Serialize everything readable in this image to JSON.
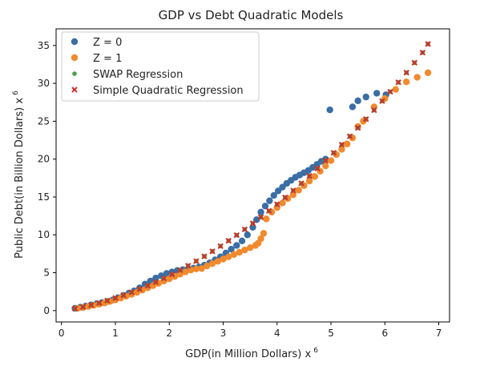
{
  "chart_data": {
    "type": "scatter",
    "title": "GDP vs Debt Quadratic Models",
    "xlabel": "GDP(in Million Dollars) x",
    "xlabel_exp": "6",
    "ylabel": "Public Debt(in Billion Dollars) x",
    "ylabel_exp": "6",
    "xlim": [
      -0.1,
      7.2
    ],
    "ylim": [
      -1.5,
      37.2
    ],
    "xticks": [
      0,
      1,
      2,
      3,
      4,
      5,
      6,
      7
    ],
    "yticks": [
      0,
      5,
      10,
      15,
      20,
      25,
      30,
      35
    ],
    "grid": false,
    "legend_position": "top-left",
    "series": [
      {
        "name": "Z = 0",
        "marker": "circle",
        "color": "#3a6ea5",
        "points": [
          [
            0.25,
            0.3
          ],
          [
            0.35,
            0.45
          ],
          [
            0.45,
            0.6
          ],
          [
            0.55,
            0.75
          ],
          [
            0.65,
            0.9
          ],
          [
            0.75,
            1.05
          ],
          [
            0.85,
            1.2
          ],
          [
            0.95,
            1.4
          ],
          [
            1.05,
            1.7
          ],
          [
            1.15,
            2.0
          ],
          [
            1.25,
            2.3
          ],
          [
            1.35,
            2.6
          ],
          [
            1.45,
            3.0
          ],
          [
            1.55,
            3.5
          ],
          [
            1.65,
            3.9
          ],
          [
            1.75,
            4.3
          ],
          [
            1.85,
            4.6
          ],
          [
            1.95,
            4.9
          ],
          [
            2.05,
            5.1
          ],
          [
            2.15,
            5.3
          ],
          [
            2.25,
            5.4
          ],
          [
            2.35,
            5.5
          ],
          [
            2.45,
            5.6
          ],
          [
            2.55,
            5.75
          ],
          [
            2.65,
            6.0
          ],
          [
            2.75,
            6.3
          ],
          [
            2.85,
            6.7
          ],
          [
            2.95,
            7.1
          ],
          [
            3.05,
            7.6
          ],
          [
            3.15,
            8.1
          ],
          [
            3.25,
            8.6
          ],
          [
            3.35,
            9.2
          ],
          [
            3.45,
            10.0
          ],
          [
            3.55,
            11.0
          ],
          [
            3.62,
            12.0
          ],
          [
            3.7,
            13.0
          ],
          [
            3.78,
            13.8
          ],
          [
            3.86,
            14.5
          ],
          [
            3.94,
            15.2
          ],
          [
            4.02,
            15.8
          ],
          [
            4.1,
            16.3
          ],
          [
            4.18,
            16.8
          ],
          [
            4.26,
            17.2
          ],
          [
            4.34,
            17.6
          ],
          [
            4.42,
            17.9
          ],
          [
            4.5,
            18.2
          ],
          [
            4.58,
            18.5
          ],
          [
            4.66,
            18.9
          ],
          [
            4.74,
            19.3
          ],
          [
            4.82,
            19.7
          ],
          [
            4.9,
            20.0
          ],
          [
            4.98,
            26.5
          ],
          [
            5.4,
            26.9
          ],
          [
            5.5,
            27.7
          ],
          [
            5.65,
            28.2
          ],
          [
            5.85,
            28.7
          ],
          [
            6.02,
            28.5
          ]
        ]
      },
      {
        "name": "Z = 1",
        "marker": "circle",
        "color": "#f08a2e",
        "points": [
          [
            0.3,
            0.3
          ],
          [
            0.4,
            0.4
          ],
          [
            0.5,
            0.55
          ],
          [
            0.6,
            0.7
          ],
          [
            0.7,
            0.85
          ],
          [
            0.8,
            1.0
          ],
          [
            0.9,
            1.2
          ],
          [
            1.0,
            1.4
          ],
          [
            1.1,
            1.65
          ],
          [
            1.2,
            1.9
          ],
          [
            1.3,
            2.15
          ],
          [
            1.4,
            2.4
          ],
          [
            1.5,
            2.7
          ],
          [
            1.6,
            3.0
          ],
          [
            1.7,
            3.3
          ],
          [
            1.8,
            3.6
          ],
          [
            1.9,
            3.9
          ],
          [
            2.0,
            4.2
          ],
          [
            2.1,
            4.5
          ],
          [
            2.2,
            4.8
          ],
          [
            2.3,
            5.1
          ],
          [
            2.4,
            5.35
          ],
          [
            2.5,
            5.5
          ],
          [
            2.6,
            5.55
          ],
          [
            2.7,
            5.9
          ],
          [
            2.8,
            6.2
          ],
          [
            2.9,
            6.5
          ],
          [
            3.0,
            6.8
          ],
          [
            3.1,
            7.1
          ],
          [
            3.2,
            7.4
          ],
          [
            3.3,
            7.7
          ],
          [
            3.4,
            8.0
          ],
          [
            3.5,
            8.3
          ],
          [
            3.6,
            8.6
          ],
          [
            3.65,
            8.9
          ],
          [
            3.7,
            9.5
          ],
          [
            3.75,
            10.2
          ],
          [
            3.8,
            12.1
          ],
          [
            3.9,
            13.0
          ],
          [
            4.0,
            13.6
          ],
          [
            4.1,
            14.2
          ],
          [
            4.2,
            14.8
          ],
          [
            4.3,
            15.3
          ],
          [
            4.4,
            15.9
          ],
          [
            4.5,
            16.5
          ],
          [
            4.6,
            17.1
          ],
          [
            4.7,
            17.7
          ],
          [
            4.8,
            18.4
          ],
          [
            4.9,
            19.1
          ],
          [
            5.0,
            19.8
          ],
          [
            5.1,
            20.6
          ],
          [
            5.2,
            21.3
          ],
          [
            5.3,
            22.0
          ],
          [
            5.4,
            22.8
          ],
          [
            5.5,
            24.3
          ],
          [
            5.6,
            25.0
          ],
          [
            5.8,
            26.9
          ],
          [
            6.0,
            28.0
          ],
          [
            6.2,
            29.2
          ],
          [
            6.4,
            30.2
          ],
          [
            6.6,
            30.8
          ],
          [
            6.8,
            31.4
          ]
        ]
      },
      {
        "name": "SWAP Regression",
        "marker": "dot",
        "color": "#4a9e4a",
        "points": [
          [
            0.25,
            0.26
          ],
          [
            0.4,
            0.48
          ],
          [
            0.55,
            0.73
          ],
          [
            0.7,
            1.01
          ],
          [
            0.85,
            1.32
          ],
          [
            1.0,
            1.66
          ],
          [
            1.15,
            2.03
          ],
          [
            1.3,
            2.42
          ],
          [
            1.45,
            2.84
          ],
          [
            1.6,
            3.29
          ],
          [
            1.75,
            3.76
          ],
          [
            1.9,
            4.26
          ],
          [
            2.05,
            4.79
          ],
          [
            2.2,
            5.34
          ],
          [
            2.35,
            5.92
          ],
          [
            2.5,
            6.53
          ],
          [
            2.65,
            7.16
          ],
          [
            2.8,
            7.82
          ],
          [
            2.95,
            8.51
          ],
          [
            3.1,
            9.22
          ],
          [
            3.25,
            9.96
          ],
          [
            3.4,
            10.72
          ],
          [
            3.55,
            11.51
          ],
          [
            3.7,
            12.33
          ],
          [
            3.85,
            13.17
          ],
          [
            4.0,
            14.04
          ],
          [
            4.15,
            14.93
          ],
          [
            4.3,
            15.85
          ],
          [
            4.45,
            16.8
          ],
          [
            4.6,
            17.77
          ],
          [
            4.75,
            18.76
          ],
          [
            4.9,
            19.79
          ],
          [
            5.05,
            20.83
          ],
          [
            5.2,
            21.91
          ],
          [
            5.35,
            23.01
          ],
          [
            5.5,
            24.13
          ],
          [
            5.65,
            25.28
          ],
          [
            5.8,
            26.46
          ],
          [
            5.95,
            27.66
          ],
          [
            6.1,
            28.89
          ],
          [
            6.25,
            30.14
          ],
          [
            6.4,
            31.42
          ],
          [
            6.55,
            32.73
          ],
          [
            6.7,
            34.06
          ],
          [
            6.8,
            35.2
          ]
        ]
      },
      {
        "name": "Simple Quadratic Regression",
        "marker": "x",
        "color": "#d0302a",
        "points": [
          [
            0.25,
            0.26
          ],
          [
            0.4,
            0.48
          ],
          [
            0.55,
            0.73
          ],
          [
            0.7,
            1.01
          ],
          [
            0.85,
            1.32
          ],
          [
            1.0,
            1.66
          ],
          [
            1.15,
            2.03
          ],
          [
            1.3,
            2.42
          ],
          [
            1.45,
            2.84
          ],
          [
            1.6,
            3.29
          ],
          [
            1.75,
            3.76
          ],
          [
            1.9,
            4.26
          ],
          [
            2.05,
            4.79
          ],
          [
            2.2,
            5.34
          ],
          [
            2.35,
            5.92
          ],
          [
            2.5,
            6.53
          ],
          [
            2.65,
            7.16
          ],
          [
            2.8,
            7.82
          ],
          [
            2.95,
            8.51
          ],
          [
            3.1,
            9.22
          ],
          [
            3.25,
            9.96
          ],
          [
            3.4,
            10.72
          ],
          [
            3.55,
            11.51
          ],
          [
            3.7,
            12.33
          ],
          [
            3.85,
            13.17
          ],
          [
            4.0,
            14.04
          ],
          [
            4.15,
            14.93
          ],
          [
            4.3,
            15.85
          ],
          [
            4.45,
            16.8
          ],
          [
            4.6,
            17.77
          ],
          [
            4.75,
            18.76
          ],
          [
            4.9,
            19.79
          ],
          [
            5.05,
            20.83
          ],
          [
            5.2,
            21.91
          ],
          [
            5.35,
            23.01
          ],
          [
            5.5,
            24.13
          ],
          [
            5.65,
            25.28
          ],
          [
            5.8,
            26.46
          ],
          [
            5.95,
            27.66
          ],
          [
            6.1,
            28.89
          ],
          [
            6.25,
            30.14
          ],
          [
            6.4,
            31.42
          ],
          [
            6.55,
            32.73
          ],
          [
            6.7,
            34.06
          ],
          [
            6.8,
            35.2
          ]
        ]
      }
    ]
  }
}
